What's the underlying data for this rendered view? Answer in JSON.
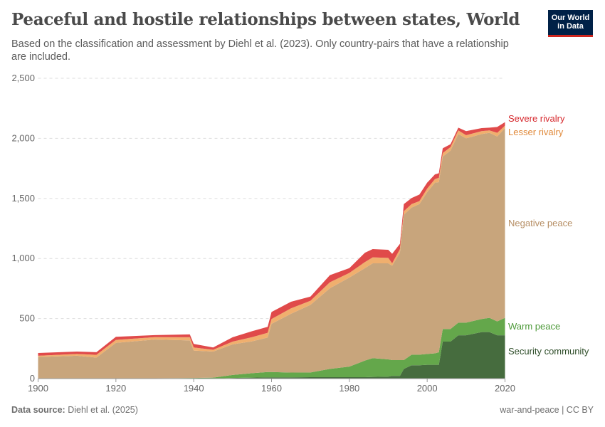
{
  "header": {
    "title": "Peaceful and hostile relationships between states, World",
    "subtitle": "Based on the classification and assessment by Diehl et al. (2023). Only country-pairs that have a relationship are included.",
    "logo_line1": "Our World",
    "logo_line2": "in Data"
  },
  "footer": {
    "source_label": "Data source:",
    "source": "Diehl et al. (2025)",
    "license": "war-and-peace | CC BY"
  },
  "chart_data": {
    "type": "area",
    "stacked": true,
    "xlim": [
      1900,
      2020
    ],
    "ylim": [
      0,
      2500
    ],
    "x_ticks": [
      "1900",
      "1920",
      "1940",
      "1960",
      "1980",
      "2000",
      "2020"
    ],
    "y_ticks": [
      "0",
      "500",
      "1,000",
      "1,500",
      "2,000",
      "2,500"
    ],
    "grid": "horizontal dashed",
    "legend": "right, inline labels",
    "x": [
      1900,
      1910,
      1915,
      1920,
      1930,
      1939,
      1940,
      1945,
      1950,
      1955,
      1959,
      1960,
      1965,
      1970,
      1975,
      1980,
      1984,
      1986,
      1990,
      1991,
      1993,
      1994,
      1996,
      1998,
      2000,
      2002,
      2003,
      2004,
      2006,
      2008,
      2010,
      2014,
      2016,
      2018,
      2020
    ],
    "series": [
      {
        "name": "Security community",
        "color": "#466c3e",
        "label_color": "#2f4e2a",
        "values": [
          0,
          0,
          0,
          0,
          0,
          0,
          0,
          0,
          5,
          8,
          10,
          10,
          10,
          12,
          12,
          12,
          12,
          14,
          16,
          22,
          22,
          81,
          111,
          111,
          115,
          115,
          115,
          308,
          308,
          361,
          361,
          387,
          387,
          361,
          361
        ]
      },
      {
        "name": "Warm peace",
        "color": "#64a74b",
        "label_color": "#4e9a3a",
        "values": [
          2,
          2,
          2,
          3,
          3,
          5,
          5,
          8,
          25,
          37,
          45,
          45,
          40,
          39,
          69,
          88,
          138,
          156,
          144,
          132,
          132,
          73,
          88,
          88,
          90,
          95,
          104,
          105,
          105,
          105,
          105,
          109,
          119,
          115,
          145
        ]
      },
      {
        "name": "Negative peace",
        "color": "#c8a57c",
        "label_color": "#b68e64",
        "values": [
          178,
          188,
          173,
          295,
          322,
          313,
          228,
          217,
          255,
          265,
          287,
          401,
          490,
          563,
          671,
          741,
          770,
          790,
          800,
          786,
          895,
          1211,
          1225,
          1254,
          1347,
          1421,
          1416,
          1435,
          1485,
          1570,
          1534,
          1540,
          1540,
          1540,
          1579
        ]
      },
      {
        "name": "Lesser rivalry",
        "color": "#f0af6e",
        "label_color": "#e0893a",
        "values": [
          10,
          15,
          23,
          24,
          20,
          26,
          26,
          15,
          23,
          35,
          39,
          40,
          45,
          34,
          50,
          39,
          50,
          49,
          45,
          20,
          29,
          29,
          29,
          24,
          30,
          30,
          36,
          30,
          29,
          30,
          26,
          24,
          20,
          30,
          20
        ]
      },
      {
        "name": "Severe rivalry",
        "color": "#e04a4a",
        "label_color": "#d6282d",
        "values": [
          23,
          20,
          22,
          26,
          17,
          24,
          30,
          19,
          36,
          50,
          50,
          59,
          55,
          35,
          59,
          40,
          78,
          69,
          67,
          79,
          44,
          59,
          50,
          55,
          49,
          39,
          39,
          39,
          24,
          23,
          34,
          25,
          23,
          49,
          30
        ]
      }
    ]
  }
}
